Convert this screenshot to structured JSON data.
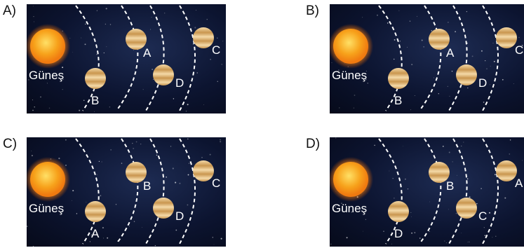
{
  "sun_label": "Güneş",
  "colors": {
    "space": "#0c1430",
    "orbit": "#ffffff",
    "sun_core": "#ffe066",
    "sun_edge": "#f07a10",
    "planet_light": "#f4d9a8",
    "planet_dark": "#c9964f"
  },
  "options": [
    {
      "letter": "A)",
      "planets": [
        "B",
        "A",
        "D",
        "C"
      ]
    },
    {
      "letter": "B)",
      "planets": [
        "B",
        "A",
        "D",
        "C"
      ]
    },
    {
      "letter": "C)",
      "planets": [
        "A",
        "B",
        "D",
        "C"
      ]
    },
    {
      "letter": "D)",
      "planets": [
        "D",
        "B",
        "C",
        "A"
      ]
    }
  ]
}
